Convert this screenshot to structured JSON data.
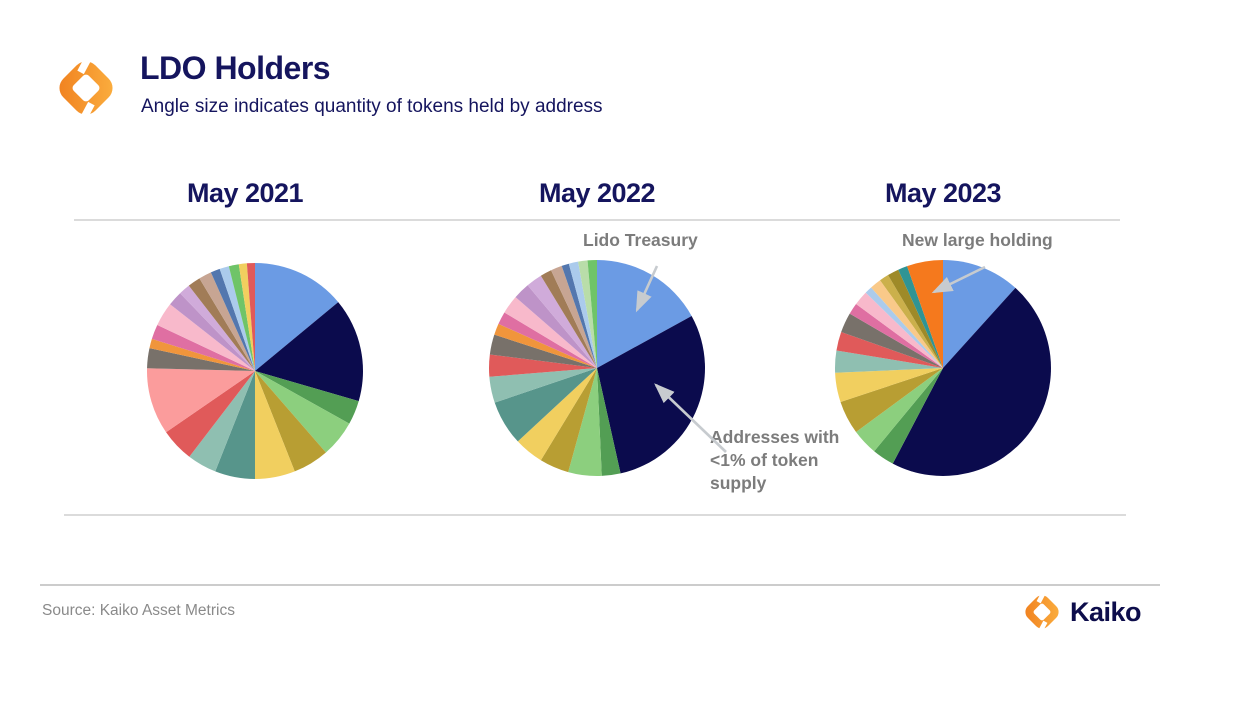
{
  "header": {
    "title": "LDO Holders",
    "subtitle": "Angle size indicates quantity of tokens held by address"
  },
  "colors": {
    "navy_text": "#15155E",
    "annotation_gray": "#7C7C7C",
    "source_gray": "#8A8A8A",
    "brand_navy": "#0D0D4B",
    "divider_gray": "#DBDBDB",
    "arrow": "#C7CBCF",
    "logo_orange_dark": "#F07F1E",
    "logo_orange_light": "#FBB040"
  },
  "palette": {
    "blue": "#6B9BE4",
    "navy": "#0B0B4D",
    "green": "#539E54",
    "lightgreen": "#8CCF7E",
    "khaki": "#B89E33",
    "yellow": "#F1CF5F",
    "teal": "#57958B",
    "seafoam": "#8FBFB1",
    "red": "#E05A5A",
    "salmon": "#FB9C9C",
    "gray": "#78716A",
    "orange": "#F0953C",
    "pink": "#DF6FA2",
    "lightpink": "#F8B9CB",
    "plum": "#BE93C8",
    "lavender": "#D0ABDA",
    "brown": "#A17C57",
    "tan": "#C7A593",
    "steelblue": "#5377AE",
    "paleblue": "#ABCBEC",
    "palegreen": "#B9DDA9",
    "green2": "#6FC468",
    "peach": "#F9C989",
    "gold": "#CBB04B",
    "darkkhaki": "#9E8A28",
    "tealdark": "#2F9494",
    "brightorange": "#F5791D"
  },
  "chart_data": [
    {
      "type": "pie",
      "title": "May 2021",
      "value_unit": "percent of LDO supply (estimated from slice angle)",
      "slices": [
        {
          "color": "blue",
          "value": 14.0
        },
        {
          "color": "navy",
          "value": 15.5
        },
        {
          "color": "green",
          "value": 3.6
        },
        {
          "color": "lightgreen",
          "value": 5.5
        },
        {
          "color": "khaki",
          "value": 5.4
        },
        {
          "color": "yellow",
          "value": 6.0
        },
        {
          "color": "teal",
          "value": 6.0
        },
        {
          "color": "seafoam",
          "value": 4.4
        },
        {
          "color": "red",
          "value": 5.0
        },
        {
          "color": "salmon",
          "value": 10.0
        },
        {
          "color": "gray",
          "value": 3.0
        },
        {
          "color": "orange",
          "value": 1.4
        },
        {
          "color": "pink",
          "value": 2.2
        },
        {
          "color": "lightpink",
          "value": 3.6
        },
        {
          "color": "plum",
          "value": 2.2
        },
        {
          "color": "lavender",
          "value": 1.7
        },
        {
          "color": "brown",
          "value": 1.9
        },
        {
          "color": "tan",
          "value": 1.9
        },
        {
          "color": "steelblue",
          "value": 1.4
        },
        {
          "color": "paleblue",
          "value": 1.4
        },
        {
          "color": "green2",
          "value": 1.5
        },
        {
          "color": "yellow",
          "value": 1.2
        },
        {
          "color": "red",
          "value": 1.2
        }
      ]
    },
    {
      "type": "pie",
      "title": "May 2022",
      "value_unit": "percent of LDO supply (estimated from slice angle)",
      "annotations": {
        "treasury": "Lido Treasury",
        "small_holders": "Addresses with <1% of token supply"
      },
      "slices": [
        {
          "color": "blue",
          "value": 17.0,
          "label": "Lido Treasury"
        },
        {
          "color": "navy",
          "value": 29.5,
          "label": "Addresses with <1% of token supply"
        },
        {
          "color": "green",
          "value": 2.8
        },
        {
          "color": "lightgreen",
          "value": 5.0
        },
        {
          "color": "khaki",
          "value": 4.4
        },
        {
          "color": "yellow",
          "value": 4.4
        },
        {
          "color": "teal",
          "value": 6.7
        },
        {
          "color": "seafoam",
          "value": 3.9
        },
        {
          "color": "red",
          "value": 3.3
        },
        {
          "color": "gray",
          "value": 3.0
        },
        {
          "color": "orange",
          "value": 1.7
        },
        {
          "color": "pink",
          "value": 1.9
        },
        {
          "color": "lightpink",
          "value": 2.8
        },
        {
          "color": "plum",
          "value": 2.5
        },
        {
          "color": "lavender",
          "value": 2.4
        },
        {
          "color": "brown",
          "value": 1.7
        },
        {
          "color": "tan",
          "value": 1.7
        },
        {
          "color": "steelblue",
          "value": 1.1
        },
        {
          "color": "paleblue",
          "value": 1.4
        },
        {
          "color": "palegreen",
          "value": 1.4
        },
        {
          "color": "green2",
          "value": 1.4
        }
      ]
    },
    {
      "type": "pie",
      "title": "May 2023",
      "value_unit": "percent of LDO supply (estimated from slice angle)",
      "annotations": {
        "new_holding": "New large holding"
      },
      "slices": [
        {
          "color": "blue",
          "value": 11.7
        },
        {
          "color": "navy",
          "value": 46.0,
          "label": "Addresses with <1% of token supply"
        },
        {
          "color": "green",
          "value": 3.3
        },
        {
          "color": "lightgreen",
          "value": 3.9
        },
        {
          "color": "khaki",
          "value": 5.0
        },
        {
          "color": "yellow",
          "value": 4.4
        },
        {
          "color": "seafoam",
          "value": 3.3
        },
        {
          "color": "red",
          "value": 2.8
        },
        {
          "color": "gray",
          "value": 3.0
        },
        {
          "color": "pink",
          "value": 1.7
        },
        {
          "color": "lightpink",
          "value": 2.2
        },
        {
          "color": "paleblue",
          "value": 1.1
        },
        {
          "color": "peach",
          "value": 1.7
        },
        {
          "color": "gold",
          "value": 1.4
        },
        {
          "color": "darkkhaki",
          "value": 1.7
        },
        {
          "color": "tealdark",
          "value": 1.4
        },
        {
          "color": "brightorange",
          "value": 5.4,
          "label": "New large holding"
        }
      ]
    }
  ],
  "footer": {
    "source": "Source: Kaiko Asset Metrics",
    "brand": "Kaiko"
  }
}
